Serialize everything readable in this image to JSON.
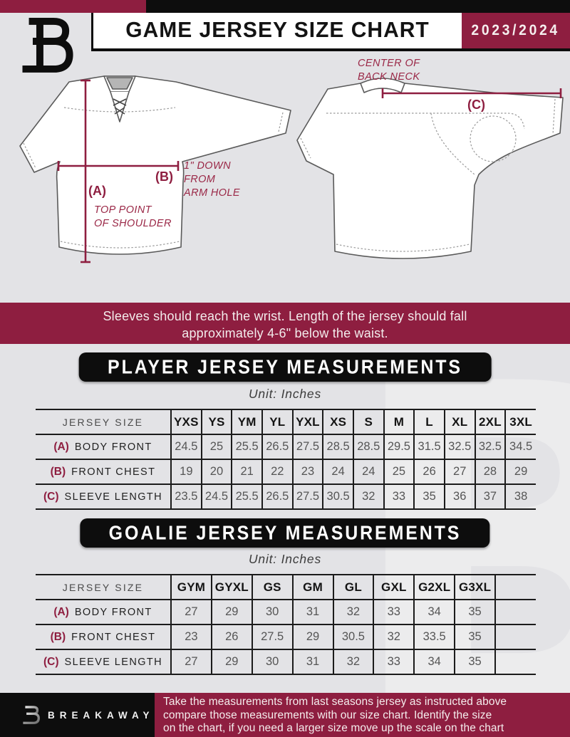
{
  "header": {
    "title": "GAME JERSEY SIZE CHART",
    "season": "2023/2024"
  },
  "diagram": {
    "front_jersey": {
      "label_a": "(A)",
      "note_a": "TOP POINT\nOF SHOULDER",
      "label_b": "(B)",
      "note_b": "1\" DOWN\nFROM\nARM HOLE"
    },
    "back_jersey": {
      "label_c": "(C)",
      "note_c": "CENTER OF\nBACK NECK"
    }
  },
  "banner": {
    "line1": "Sleeves should reach the wrist. Length of the jersey should fall",
    "line2": "approximately 4-6\" below the waist."
  },
  "player_section": {
    "title": "PLAYER JERSEY MEASUREMENTS",
    "unit": "Unit: Inches"
  },
  "goalie_section": {
    "title": "GOALIE JERSEY MEASUREMENTS",
    "unit": "Unit: Inches"
  },
  "player_table": {
    "size_header": "JERSEY SIZE",
    "sizes": [
      "YXS",
      "YS",
      "YM",
      "YL",
      "YXL",
      "XS",
      "S",
      "M",
      "L",
      "XL",
      "2XL",
      "3XL"
    ],
    "rows": [
      {
        "key": "(A)",
        "label": "BODY FRONT",
        "values": [
          "24.5",
          "25",
          "25.5",
          "26.5",
          "27.5",
          "28.5",
          "28.5",
          "29.5",
          "31.5",
          "32.5",
          "32.5",
          "34.5"
        ]
      },
      {
        "key": "(B)",
        "label": "FRONT CHEST",
        "values": [
          "19",
          "20",
          "21",
          "22",
          "23",
          "24",
          "24",
          "25",
          "26",
          "27",
          "28",
          "29"
        ]
      },
      {
        "key": "(C)",
        "label": "SLEEVE LENGTH",
        "values": [
          "23.5",
          "24.5",
          "25.5",
          "26.5",
          "27.5",
          "30.5",
          "32",
          "33",
          "35",
          "36",
          "37",
          "38"
        ]
      }
    ]
  },
  "goalie_table": {
    "size_header": "JERSEY SIZE",
    "sizes": [
      "GYM",
      "GYXL",
      "GS",
      "GM",
      "GL",
      "GXL",
      "G2XL",
      "G3XL",
      ""
    ],
    "rows": [
      {
        "key": "(A)",
        "label": "BODY FRONT",
        "values": [
          "27",
          "29",
          "30",
          "31",
          "32",
          "33",
          "34",
          "35",
          ""
        ]
      },
      {
        "key": "(B)",
        "label": "FRONT CHEST",
        "values": [
          "23",
          "26",
          "27.5",
          "29",
          "30.5",
          "32",
          "33.5",
          "35",
          ""
        ]
      },
      {
        "key": "(C)",
        "label": "SLEEVE LENGTH",
        "values": [
          "27",
          "29",
          "30",
          "31",
          "32",
          "33",
          "34",
          "35",
          ""
        ]
      }
    ]
  },
  "footer": {
    "brand": "BREAKAWAY",
    "line1": "Take the measurements from last seasons jersey as instructed above",
    "line2": "compare those measurements  with our size chart. Identify the size",
    "line3": "on the chart, if you need a larger size move up the scale on the chart"
  },
  "colors": {
    "maroon": "#8e1e40",
    "black": "#0d0d0d",
    "background": "#e3e3e6",
    "value_text": "#555555",
    "watermark": "#f2f2f3"
  },
  "watermark_letter": "B"
}
